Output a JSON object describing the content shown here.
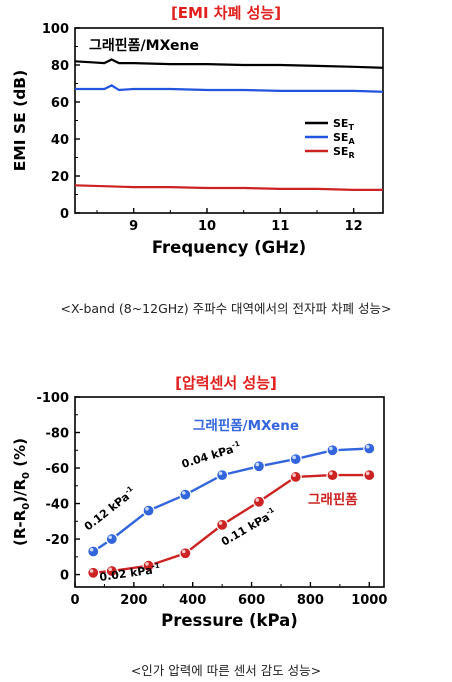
{
  "chart_data": [
    {
      "type": "line",
      "title": "[EMI 차폐 성능]",
      "caption": "<X-band (8~12GHz) 주파수 대역에서의 전자파 차폐 성능>",
      "annotation": "그래핀폼/MXene",
      "xlabel": "Frequency (GHz)",
      "ylabel": "EMI SE (dB)",
      "xlim": [
        8.2,
        12.4
      ],
      "ylim": [
        0,
        100
      ],
      "xticks": [
        "9",
        "10",
        "11",
        "12"
      ],
      "yticks": [
        "0",
        "20",
        "40",
        "60",
        "80",
        "100"
      ],
      "grid": false,
      "legend_position": "center-right",
      "series": [
        {
          "name": "SET",
          "name_main": "SE",
          "name_sub": "T",
          "color": "#000000",
          "x": [
            8.2,
            8.4,
            8.6,
            8.7,
            8.8,
            9.0,
            9.5,
            10.0,
            10.5,
            11.0,
            11.5,
            12.0,
            12.4
          ],
          "y": [
            82,
            81.5,
            81,
            83,
            81,
            81,
            80.5,
            80.5,
            80,
            80,
            79.5,
            79,
            78.5
          ]
        },
        {
          "name": "SEA",
          "name_main": "SE",
          "name_sub": "A",
          "color": "#2255dd",
          "x": [
            8.2,
            8.4,
            8.6,
            8.7,
            8.8,
            9.0,
            9.5,
            10.0,
            10.5,
            11.0,
            11.5,
            12.0,
            12.4
          ],
          "y": [
            67,
            67,
            67,
            69,
            66.5,
            67,
            67,
            66.5,
            66.5,
            66,
            66,
            66,
            65.5
          ]
        },
        {
          "name": "SER",
          "name_main": "SE",
          "name_sub": "R",
          "color": "#cc2222",
          "x": [
            8.2,
            8.6,
            9.0,
            9.5,
            10.0,
            10.5,
            11.0,
            11.5,
            12.0,
            12.4
          ],
          "y": [
            15,
            14.5,
            14,
            14,
            13.5,
            13.5,
            13,
            13,
            12.5,
            12.5
          ]
        }
      ]
    },
    {
      "type": "line",
      "title": "[압력센서 성능]",
      "caption": "<인가 압력에 따른 센서 감도 성능>",
      "xlabel": "Pressure (kPa)",
      "ylabel_parts": [
        "(R-R",
        "0",
        ")/R",
        "0",
        " (%)"
      ],
      "xlim": [
        0,
        1050
      ],
      "ylim": [
        -100,
        0
      ],
      "yaxis_inverted": true,
      "xticks": [
        "0",
        "200",
        "400",
        "600",
        "800",
        "1000"
      ],
      "yticks": [
        "-100",
        "-80",
        "-60",
        "-40",
        "-20",
        "0"
      ],
      "grid": false,
      "annotations": [
        {
          "text": "0.12 kPa",
          "sup": "-1",
          "color": "#000000"
        },
        {
          "text": "0.04 kPa",
          "sup": "-1",
          "color": "#000000"
        },
        {
          "text": "0.02 kPa",
          "sup": "-1",
          "color": "#000000"
        },
        {
          "text": "0.11 kPa",
          "sup": "-1",
          "color": "#000000"
        }
      ],
      "series": [
        {
          "name": "그래핀폼/MXene",
          "color": "#3366dd",
          "x": [
            62,
            125,
            250,
            375,
            500,
            625,
            750,
            875,
            1000
          ],
          "y": [
            -13,
            -20,
            -36,
            -45,
            -56,
            -61,
            -65,
            -70,
            -71
          ]
        },
        {
          "name": "그래핀폼",
          "color": "#cc2222",
          "x": [
            62,
            125,
            250,
            375,
            500,
            625,
            750,
            875,
            1000
          ],
          "y": [
            -1,
            -2,
            -5,
            -12,
            -28,
            -41,
            -55,
            -56,
            -56
          ]
        }
      ]
    }
  ]
}
